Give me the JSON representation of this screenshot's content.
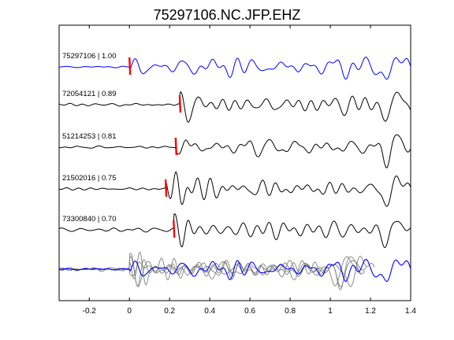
{
  "chart_data": {
    "type": "line",
    "title": "75297106.NC.JFP.EHZ",
    "xlabel": "",
    "ylabel": "",
    "xlim": [
      -0.35,
      1.4
    ],
    "x_ticks": [
      -0.2,
      0,
      0.2,
      0.4,
      0.6,
      0.8,
      1,
      1.2,
      1.4
    ],
    "x_tick_labels": [
      "-0.2",
      "0",
      "0.2",
      "0.4",
      "0.6",
      "0.8",
      "1",
      "1.2",
      "1.4"
    ],
    "grid": false,
    "colors": {
      "reference": "#0000ff",
      "trace": "#000000",
      "pick": "#ff0000",
      "stack": "#808080"
    },
    "traces": [
      {
        "label": "75297106 | 1.00",
        "event_id": "75297106",
        "correlation": 1.0,
        "pick_time": 0.0,
        "color": "#0000ff",
        "seed": 7,
        "lead_amp": 0.05,
        "coda_amp": 0.6,
        "pick_amp": 0.35,
        "late_amp": 1.0
      },
      {
        "label": "72054121 | 0.89",
        "event_id": "72054121",
        "correlation": 0.89,
        "pick_time": 0.25,
        "color": "#000000",
        "seed": 19,
        "lead_amp": 0.08,
        "coda_amp": 0.5,
        "pick_amp": 0.55,
        "late_amp": 1.0
      },
      {
        "label": "51214253 | 0.81",
        "event_id": "51214253",
        "correlation": 0.81,
        "pick_time": 0.23,
        "color": "#000000",
        "seed": 31,
        "lead_amp": 0.08,
        "coda_amp": 0.45,
        "pick_amp": 0.6,
        "late_amp": 1.0
      },
      {
        "label": "21502016 | 0.75",
        "event_id": "21502016",
        "correlation": 0.75,
        "pick_time": 0.18,
        "color": "#000000",
        "seed": 43,
        "lead_amp": 0.06,
        "coda_amp": 0.5,
        "pick_amp": 0.55,
        "late_amp": 1.2
      },
      {
        "label": "73300840 | 0.70",
        "event_id": "73300840",
        "correlation": 0.7,
        "pick_time": 0.22,
        "color": "#000000",
        "seed": 57,
        "lead_amp": 0.12,
        "coda_amp": 0.55,
        "pick_amp": 0.8,
        "late_amp": 1.1
      }
    ],
    "stack": {
      "description_of_bottom_row": "overlay of all aligned traces",
      "series_colors": [
        "#808080",
        "#808080",
        "#808080",
        "#808080",
        "#0000ff"
      ]
    }
  }
}
